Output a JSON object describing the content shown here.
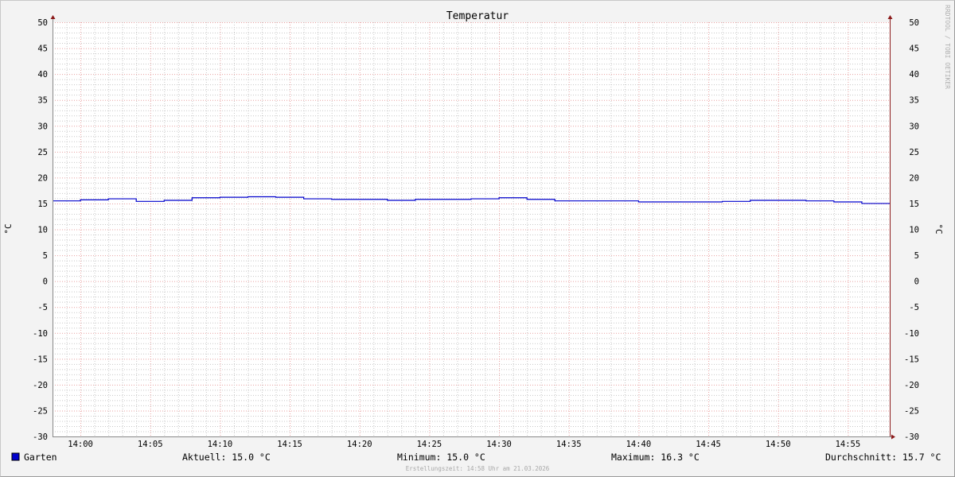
{
  "chart_data": {
    "type": "line",
    "title": "Temperatur",
    "ylabel": "°C",
    "ylim": [
      -30,
      50
    ],
    "yticks": [
      50,
      45,
      40,
      35,
      30,
      25,
      20,
      15,
      10,
      5,
      0,
      -5,
      -10,
      -15,
      -20,
      -25,
      -30
    ],
    "xlim": [
      "13:58",
      "14:58"
    ],
    "xticks": [
      "14:00",
      "14:05",
      "14:10",
      "14:15",
      "14:20",
      "14:25",
      "14:30",
      "14:35",
      "14:40",
      "14:45",
      "14:50",
      "14:55"
    ],
    "grid": true,
    "step": true,
    "legend_placement": "bottom",
    "series": [
      {
        "name": "Garten",
        "color": "#0000cc",
        "x": [
          "13:58",
          "14:00",
          "14:02",
          "14:04",
          "14:06",
          "14:08",
          "14:10",
          "14:12",
          "14:14",
          "14:16",
          "14:18",
          "14:20",
          "14:22",
          "14:24",
          "14:26",
          "14:28",
          "14:30",
          "14:32",
          "14:34",
          "14:36",
          "14:38",
          "14:40",
          "14:42",
          "14:44",
          "14:46",
          "14:48",
          "14:50",
          "14:52",
          "14:54",
          "14:56"
        ],
        "values": [
          15.5,
          15.7,
          15.9,
          15.4,
          15.6,
          16.1,
          16.2,
          16.3,
          16.2,
          15.9,
          15.8,
          15.8,
          15.6,
          15.8,
          15.8,
          15.9,
          16.1,
          15.8,
          15.5,
          15.5,
          15.5,
          15.3,
          15.3,
          15.3,
          15.4,
          15.6,
          15.6,
          15.5,
          15.3,
          15.0
        ]
      }
    ]
  },
  "legend": {
    "series_name": "Garten",
    "aktuell": "Aktuell: 15.0 °C",
    "minimum": "Minimum: 15.0 °C",
    "maximum": "Maximum: 16.3 °C",
    "durchschnitt": "Durchschnitt: 15.7 °C"
  },
  "footer": "Erstellungszeit: 14:58 Uhr am 21.03.2026",
  "watermark": "RRDTOOL / TOBI OETIKER",
  "colors": {
    "background": "#f3f3f3",
    "plot": "#ffffff",
    "line": "#0000cc",
    "major_grid": "#e8a0a0",
    "minor_grid": "#c8c8c8",
    "axis": "#8b1a1a"
  }
}
